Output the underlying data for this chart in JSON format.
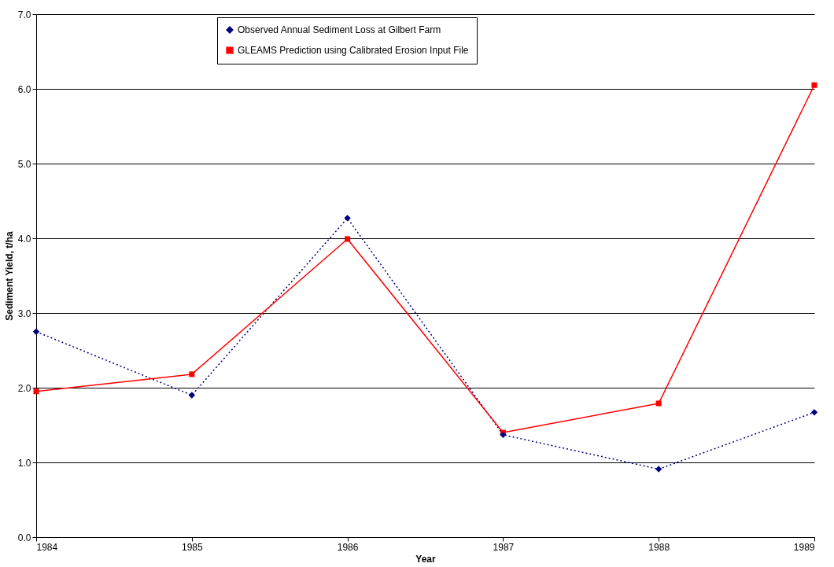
{
  "chart_data": {
    "type": "line",
    "xlabel": "Year",
    "ylabel": "Sediment Yield, t/ha",
    "x": [
      1984,
      1985,
      1986,
      1987,
      1988,
      1989
    ],
    "series": [
      {
        "name": "Observed Annual Sediment Loss at Gilbert Farm",
        "color": "#000080",
        "values": [
          2.75,
          1.9,
          4.27,
          1.37,
          0.91,
          1.67
        ],
        "marker": "diamond",
        "line_style": "dotted"
      },
      {
        "name": "GLEAMS Prediction using Calibrated Erosion Input File",
        "color": "#ff0000",
        "values": [
          1.95,
          2.18,
          3.99,
          1.4,
          1.79,
          6.05
        ],
        "marker": "square",
        "line_style": "solid"
      }
    ],
    "xlim": [
      1984,
      1989
    ],
    "xticks": [
      1984,
      1985,
      1986,
      1987,
      1988,
      1989
    ],
    "ylim": [
      0,
      7
    ],
    "yticks": [
      {
        "value": 0,
        "label": "0.0"
      },
      {
        "value": 1,
        "label": "1.0"
      },
      {
        "value": 2,
        "label": "2.0"
      },
      {
        "value": 3,
        "label": "3.0"
      },
      {
        "value": 4,
        "label": "4.0"
      },
      {
        "value": 5,
        "label": "5.0"
      },
      {
        "value": 6,
        "label": "6.0"
      },
      {
        "value": 7,
        "label": "7.0"
      }
    ],
    "grid": "y",
    "legend": "top"
  }
}
